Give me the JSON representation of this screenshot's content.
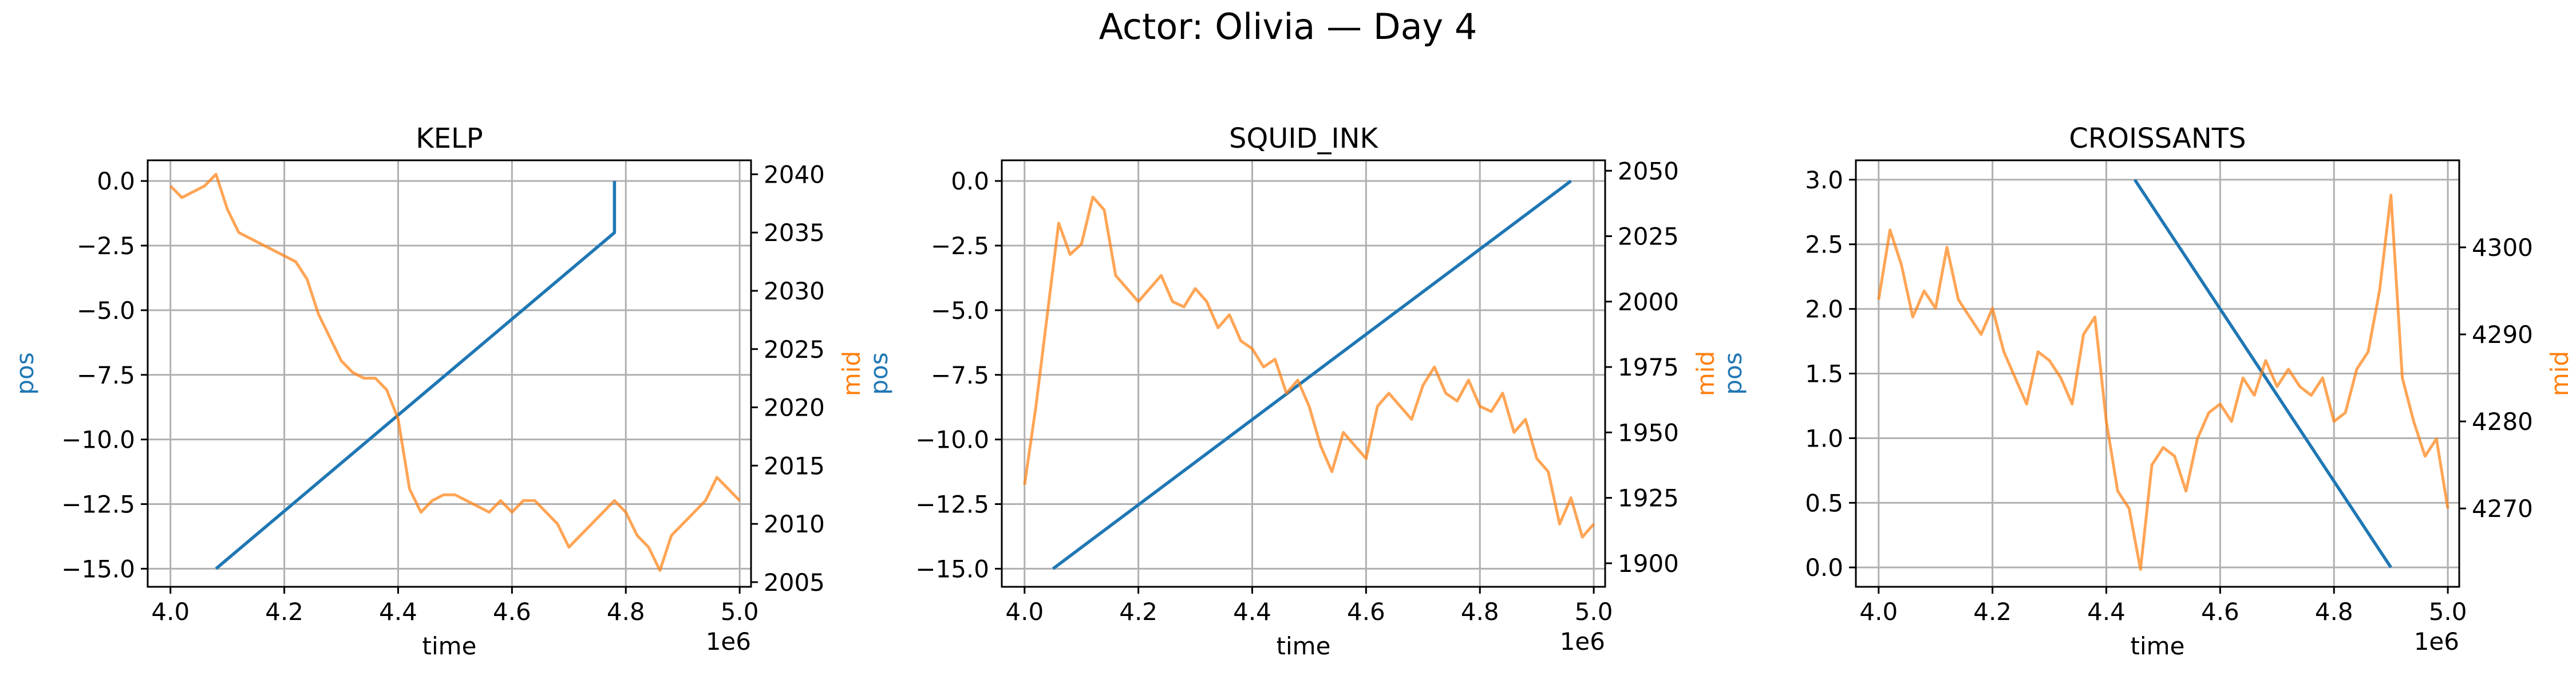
{
  "figure": {
    "title": "Actor: Olivia — Day 4"
  },
  "colors": {
    "pos": "#1f77b4",
    "mid": "#ff7f0e",
    "grid": "#b0b0b0",
    "axis": "#000000"
  },
  "chart_data": [
    {
      "type": "line",
      "title": "KELP",
      "xlabel": "time",
      "x_offset_label": "1e6",
      "ylabel": "pos",
      "y2label": "mid",
      "xlim": [
        3.96,
        5.02
      ],
      "ylim": [
        -15.7,
        0.8
      ],
      "y2lim": [
        2004.6,
        2041.2
      ],
      "xticks": [
        4.0,
        4.2,
        4.4,
        4.6,
        4.8,
        5.0
      ],
      "xtick_labels": [
        "4.0",
        "4.2",
        "4.4",
        "4.6",
        "4.8",
        "5.0"
      ],
      "yticks": [
        0.0,
        -2.5,
        -5.0,
        -7.5,
        -10.0,
        -12.5,
        -15.0
      ],
      "ytick_labels": [
        "0.0",
        "−2.5",
        "−5.0",
        "−7.5",
        "−10.0",
        "−12.5",
        "−15.0"
      ],
      "y2ticks": [
        2040,
        2035,
        2030,
        2025,
        2020,
        2015,
        2010,
        2005
      ],
      "y2tick_labels": [
        "2040",
        "2035",
        "2030",
        "2025",
        "2020",
        "2015",
        "2010",
        "2005"
      ],
      "grid": true,
      "series": [
        {
          "axis": "left",
          "color": "#1f77b4",
          "x": [
            4.08,
            4.78,
            4.78
          ],
          "y": [
            -15.0,
            -2.0,
            0.0
          ]
        },
        {
          "axis": "right",
          "color": "#ff7f0e",
          "x": [
            4.0,
            4.02,
            4.04,
            4.06,
            4.08,
            4.1,
            4.12,
            4.14,
            4.16,
            4.18,
            4.2,
            4.22,
            4.24,
            4.26,
            4.28,
            4.3,
            4.32,
            4.34,
            4.36,
            4.38,
            4.4,
            4.42,
            4.44,
            4.46,
            4.48,
            4.5,
            4.52,
            4.54,
            4.56,
            4.58,
            4.6,
            4.62,
            4.64,
            4.66,
            4.68,
            4.7,
            4.72,
            4.74,
            4.76,
            4.78,
            4.8,
            4.82,
            4.84,
            4.86,
            4.88,
            4.9,
            4.92,
            4.94,
            4.96,
            4.98,
            5.0
          ],
          "y": [
            2039.0,
            2038.0,
            2038.5,
            2039.0,
            2040.0,
            2037.0,
            2035.0,
            2034.5,
            2034.0,
            2033.5,
            2033.0,
            2032.5,
            2031.0,
            2028.0,
            2026.0,
            2024.0,
            2023.0,
            2022.5,
            2022.5,
            2021.5,
            2019.0,
            2013.0,
            2011.0,
            2012.0,
            2012.5,
            2012.5,
            2012.0,
            2011.5,
            2011.0,
            2012.0,
            2011.0,
            2012.0,
            2012.0,
            2011.0,
            2010.0,
            2008.0,
            2009.0,
            2010.0,
            2011.0,
            2012.0,
            2011.0,
            2009.0,
            2008.0,
            2006.0,
            2009.0,
            2010.0,
            2011.0,
            2012.0,
            2014.0,
            2013.0,
            2012.0
          ]
        }
      ]
    },
    {
      "type": "line",
      "title": "SQUID_INK",
      "xlabel": "time",
      "x_offset_label": "1e6",
      "ylabel": "pos",
      "y2label": "mid",
      "xlim": [
        3.96,
        5.02
      ],
      "ylim": [
        -15.7,
        0.8
      ],
      "y2lim": [
        1891.0,
        2054.0
      ],
      "xticks": [
        4.0,
        4.2,
        4.4,
        4.6,
        4.8,
        5.0
      ],
      "xtick_labels": [
        "4.0",
        "4.2",
        "4.4",
        "4.6",
        "4.8",
        "5.0"
      ],
      "yticks": [
        0.0,
        -2.5,
        -5.0,
        -7.5,
        -10.0,
        -12.5,
        -15.0
      ],
      "ytick_labels": [
        "0.0",
        "−2.5",
        "−5.0",
        "−7.5",
        "−10.0",
        "−12.5",
        "−15.0"
      ],
      "y2ticks": [
        2050,
        2025,
        2000,
        1975,
        1950,
        1925,
        1900
      ],
      "y2tick_labels": [
        "2050",
        "2025",
        "2000",
        "1975",
        "1950",
        "1925",
        "1900"
      ],
      "grid": true,
      "series": [
        {
          "axis": "left",
          "color": "#1f77b4",
          "x": [
            4.05,
            4.96
          ],
          "y": [
            -15.0,
            0.0
          ]
        },
        {
          "axis": "right",
          "color": "#ff7f0e",
          "x": [
            4.0,
            4.02,
            4.04,
            4.06,
            4.08,
            4.1,
            4.12,
            4.14,
            4.16,
            4.18,
            4.2,
            4.22,
            4.24,
            4.26,
            4.28,
            4.3,
            4.32,
            4.34,
            4.36,
            4.38,
            4.4,
            4.42,
            4.44,
            4.46,
            4.48,
            4.5,
            4.52,
            4.54,
            4.56,
            4.58,
            4.6,
            4.62,
            4.64,
            4.66,
            4.68,
            4.7,
            4.72,
            4.74,
            4.76,
            4.78,
            4.8,
            4.82,
            4.84,
            4.86,
            4.88,
            4.9,
            4.92,
            4.94,
            4.96,
            4.98,
            5.0
          ],
          "y": [
            1930.0,
            1960.0,
            1995.0,
            2030.0,
            2018.0,
            2022.0,
            2040.0,
            2035.0,
            2010.0,
            2005.0,
            2000.0,
            2005.0,
            2010.0,
            2000.0,
            1998.0,
            2005.0,
            2000.0,
            1990.0,
            1995.0,
            1985.0,
            1982.0,
            1975.0,
            1978.0,
            1965.0,
            1970.0,
            1960.0,
            1945.0,
            1935.0,
            1950.0,
            1945.0,
            1940.0,
            1960.0,
            1965.0,
            1960.0,
            1955.0,
            1968.0,
            1975.0,
            1965.0,
            1962.0,
            1970.0,
            1960.0,
            1958.0,
            1965.0,
            1950.0,
            1955.0,
            1940.0,
            1935.0,
            1915.0,
            1925.0,
            1910.0,
            1915.0
          ]
        }
      ]
    },
    {
      "type": "line",
      "title": "CROISSANTS",
      "xlabel": "time",
      "x_offset_label": "1e6",
      "ylabel": "pos",
      "y2label": "mid",
      "xlim": [
        3.96,
        5.02
      ],
      "ylim": [
        -0.15,
        3.15
      ],
      "y2lim": [
        4261.0,
        4310.0
      ],
      "xticks": [
        4.0,
        4.2,
        4.4,
        4.6,
        4.8,
        5.0
      ],
      "xtick_labels": [
        "4.0",
        "4.2",
        "4.4",
        "4.6",
        "4.8",
        "5.0"
      ],
      "yticks": [
        3.0,
        2.5,
        2.0,
        1.5,
        1.0,
        0.5,
        0.0
      ],
      "ytick_labels": [
        "3.0",
        "2.5",
        "2.0",
        "1.5",
        "1.0",
        "0.5",
        "0.0"
      ],
      "y2ticks": [
        4300,
        4290,
        4280,
        4270
      ],
      "y2tick_labels": [
        "4300",
        "4290",
        "4280",
        "4270"
      ],
      "grid": true,
      "series": [
        {
          "axis": "left",
          "color": "#1f77b4",
          "x": [
            4.45,
            4.9
          ],
          "y": [
            3.0,
            0.0
          ]
        },
        {
          "axis": "right",
          "color": "#ff7f0e",
          "x": [
            4.0,
            4.02,
            4.04,
            4.06,
            4.08,
            4.1,
            4.12,
            4.14,
            4.16,
            4.18,
            4.2,
            4.22,
            4.24,
            4.26,
            4.28,
            4.3,
            4.32,
            4.34,
            4.36,
            4.38,
            4.4,
            4.42,
            4.44,
            4.46,
            4.48,
            4.5,
            4.52,
            4.54,
            4.56,
            4.58,
            4.6,
            4.62,
            4.64,
            4.66,
            4.68,
            4.7,
            4.72,
            4.74,
            4.76,
            4.78,
            4.8,
            4.82,
            4.84,
            4.86,
            4.88,
            4.9,
            4.92,
            4.94,
            4.96,
            4.98,
            5.0
          ],
          "y": [
            4294.0,
            4302.0,
            4298.0,
            4292.0,
            4295.0,
            4293.0,
            4300.0,
            4294.0,
            4292.0,
            4290.0,
            4293.0,
            4288.0,
            4285.0,
            4282.0,
            4288.0,
            4287.0,
            4285.0,
            4282.0,
            4290.0,
            4292.0,
            4280.0,
            4272.0,
            4270.0,
            4263.0,
            4275.0,
            4277.0,
            4276.0,
            4272.0,
            4278.0,
            4281.0,
            4282.0,
            4280.0,
            4285.0,
            4283.0,
            4287.0,
            4284.0,
            4286.0,
            4284.0,
            4283.0,
            4285.0,
            4280.0,
            4281.0,
            4286.0,
            4288.0,
            4295.0,
            4306.0,
            4285.0,
            4280.0,
            4276.0,
            4278.0,
            4270.0
          ]
        }
      ]
    }
  ]
}
